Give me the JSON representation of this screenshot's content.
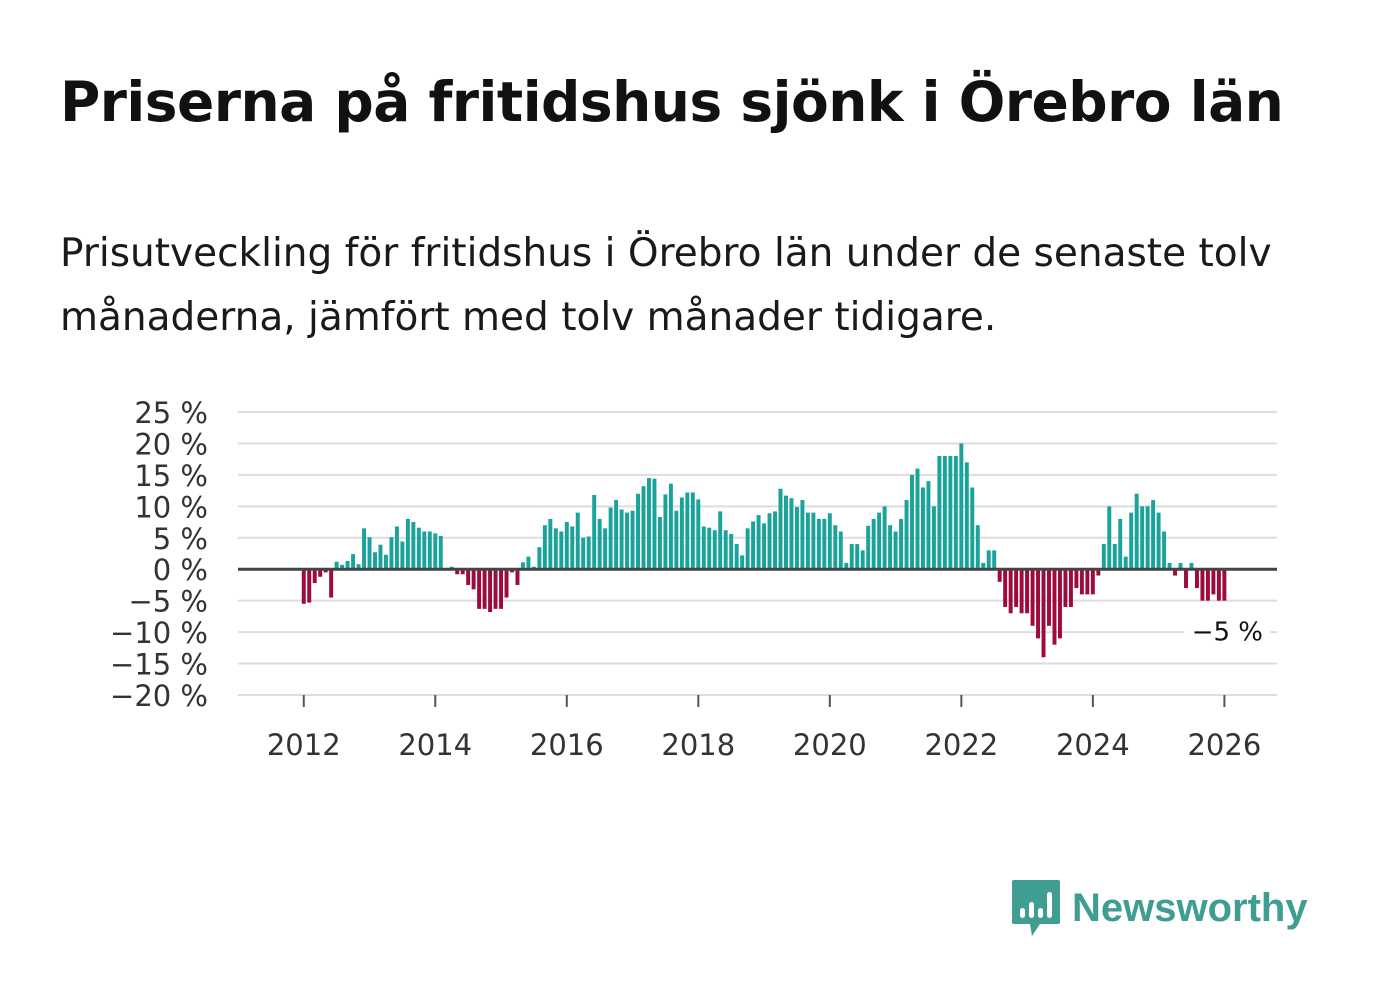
{
  "title": "Priserna på fritidshus sjönk i Örebro län",
  "subtitle": "Prisutveckling för fritidshus i Örebro län under de senaste tolv månaderna, jämfört med tolv månader tidigare.",
  "brand": {
    "name": "Newsworthy",
    "icon": "newsworthy-logo-icon"
  },
  "colors": {
    "positive": "#1aa39a",
    "negative": "#9e0a3b",
    "grid": "#dddddd",
    "zero": "#444444",
    "brand": "#3f9d92"
  },
  "chart_data": {
    "type": "bar",
    "title": "Priserna på fritidshus sjönk i Örebro län",
    "xlabel": "",
    "ylabel": "",
    "xlim": [
      2011.0,
      2026.8
    ],
    "ylim": [
      -20,
      25
    ],
    "y_ticks": [
      25,
      20,
      15,
      10,
      5,
      0,
      -5,
      -10,
      -15,
      -20
    ],
    "y_tick_labels": [
      "25 %",
      "20 %",
      "15 %",
      "10 %",
      "5 %",
      "0 %",
      "−5 %",
      "−10 %",
      "−15 %",
      "−20 %"
    ],
    "x_ticks": [
      2012,
      2014,
      2016,
      2018,
      2020,
      2022,
      2024,
      2026
    ],
    "x_tick_labels": [
      "2012",
      "2014",
      "2016",
      "2018",
      "2020",
      "2022",
      "2024",
      "2026"
    ],
    "start": 2012.0,
    "step_per_bar": 0.08333,
    "values": [
      -5.5,
      -5.3,
      -2.2,
      -1.2,
      -0.5,
      -4.5,
      1.2,
      0.7,
      1.3,
      2.4,
      0.8,
      6.5,
      5.1,
      2.7,
      3.9,
      2.3,
      5.1,
      6.8,
      4.4,
      8.0,
      7.5,
      6.6,
      6.0,
      6.0,
      5.7,
      5.3,
      0.0,
      0.4,
      -0.8,
      -0.8,
      -2.5,
      -3.2,
      -6.3,
      -6.3,
      -6.8,
      -6.3,
      -6.3,
      -4.5,
      -0.5,
      -2.5,
      1.1,
      2.0,
      0.4,
      3.5,
      7.0,
      8.0,
      6.5,
      6.0,
      7.5,
      6.8,
      9.0,
      5.0,
      5.2,
      11.8,
      8.0,
      6.5,
      9.8,
      11.0,
      9.5,
      9.0,
      9.3,
      12.0,
      13.2,
      14.5,
      14.4,
      8.3,
      11.9,
      13.6,
      9.3,
      11.4,
      12.2,
      12.2,
      11.1,
      6.8,
      6.6,
      6.2,
      9.2,
      6.2,
      5.6,
      4.0,
      2.2,
      6.5,
      7.6,
      8.6,
      7.3,
      8.9,
      9.2,
      12.8,
      11.7,
      11.3,
      9.9,
      11.0,
      9.0,
      9.0,
      8.0,
      8.0,
      8.9,
      7.0,
      6.0,
      1.0,
      4.0,
      4.0,
      3.0,
      6.9,
      8.0,
      9.0,
      10.0,
      7.0,
      6.0,
      8.0,
      11.0,
      15.0,
      16.0,
      13.0,
      14.0,
      10.0,
      18.0,
      18.0,
      18.0,
      18.0,
      20.0,
      17.0,
      13.0,
      7.0,
      1.0,
      3.0,
      3.0,
      -2.0,
      -6.0,
      -7.0,
      -6.0,
      -7.0,
      -7.0,
      -9.0,
      -11.0,
      -14.0,
      -9.0,
      -12.0,
      -11.0,
      -6.0,
      -6.0,
      -3.0,
      -4.0,
      -4.0,
      -4.0,
      -1.0,
      4.0,
      10.0,
      4.0,
      8.0,
      2.0,
      9.0,
      12.0,
      10.0,
      10.0,
      11.0,
      9.0,
      6.0,
      1.0,
      -1.0,
      1.0,
      -3.0,
      1.0,
      -3.0,
      -5.0,
      -5.0,
      -4.0,
      -5.0,
      -5.0
    ],
    "annotation": "−5 %"
  }
}
